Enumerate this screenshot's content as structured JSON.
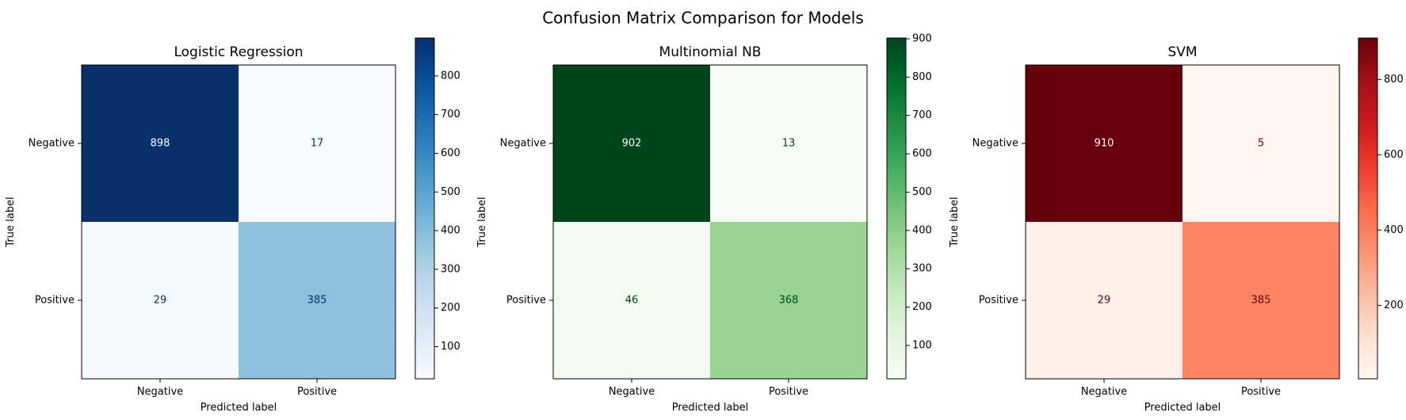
{
  "figure": {
    "title": "Confusion Matrix Comparison for Models"
  },
  "chart_data": [
    {
      "type": "heatmap",
      "title": "Logistic Regression",
      "xlabel": "Predicted label",
      "ylabel": "True label",
      "x_categories": [
        "Negative",
        "Positive"
      ],
      "y_categories": [
        "Negative",
        "Positive"
      ],
      "values": [
        [
          898,
          17
        ],
        [
          29,
          385
        ]
      ],
      "colormap": "Blues",
      "colorbar_ticks": [
        100,
        200,
        300,
        400,
        500,
        600,
        700,
        800
      ],
      "colors": [
        "#f7fbff",
        "#deebf7",
        "#c6dbef",
        "#9ecae1",
        "#6baed6",
        "#4292c6",
        "#2171b5",
        "#08519c",
        "#08306b"
      ],
      "text_dark": "#08306b",
      "text_light": "#ffffff"
    },
    {
      "type": "heatmap",
      "title": "Multinomial NB",
      "xlabel": "Predicted label",
      "ylabel": "True label",
      "x_categories": [
        "Negative",
        "Positive"
      ],
      "y_categories": [
        "Negative",
        "Positive"
      ],
      "values": [
        [
          902,
          13
        ],
        [
          46,
          368
        ]
      ],
      "colormap": "Greens",
      "colorbar_ticks": [
        100,
        200,
        300,
        400,
        500,
        600,
        700,
        800,
        900
      ],
      "colors": [
        "#f7fcf5",
        "#e5f5e0",
        "#c7e9c0",
        "#a1d99b",
        "#74c476",
        "#41ab5d",
        "#238b45",
        "#006d2c",
        "#00441b"
      ],
      "text_dark": "#00441b",
      "text_light": "#ffffff"
    },
    {
      "type": "heatmap",
      "title": "SVM",
      "xlabel": "Predicted label",
      "ylabel": "True label",
      "x_categories": [
        "Negative",
        "Positive"
      ],
      "y_categories": [
        "Negative",
        "Positive"
      ],
      "values": [
        [
          910,
          5
        ],
        [
          29,
          385
        ]
      ],
      "colormap": "Reds",
      "colorbar_ticks": [
        200,
        400,
        600,
        800
      ],
      "colors": [
        "#fff5f0",
        "#fee0d2",
        "#fcbba1",
        "#fc9272",
        "#fb6a4a",
        "#ef3b2c",
        "#cb181d",
        "#a50f15",
        "#67000d"
      ],
      "text_dark": "#67000d",
      "text_light": "#ffffff"
    }
  ]
}
